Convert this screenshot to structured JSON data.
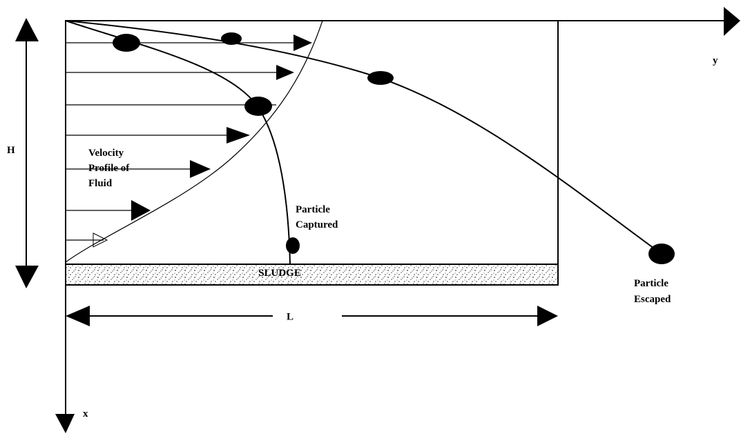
{
  "labels": {
    "y_axis": "y",
    "x_axis": "x",
    "height": "H",
    "length": "L",
    "velocity_profile": [
      "Velocity",
      "Profile of",
      "Fluid"
    ],
    "captured": [
      "Particle",
      "Captured"
    ],
    "escaped": [
      "Particle",
      "Escaped"
    ],
    "sludge": "SLUDGE"
  }
}
